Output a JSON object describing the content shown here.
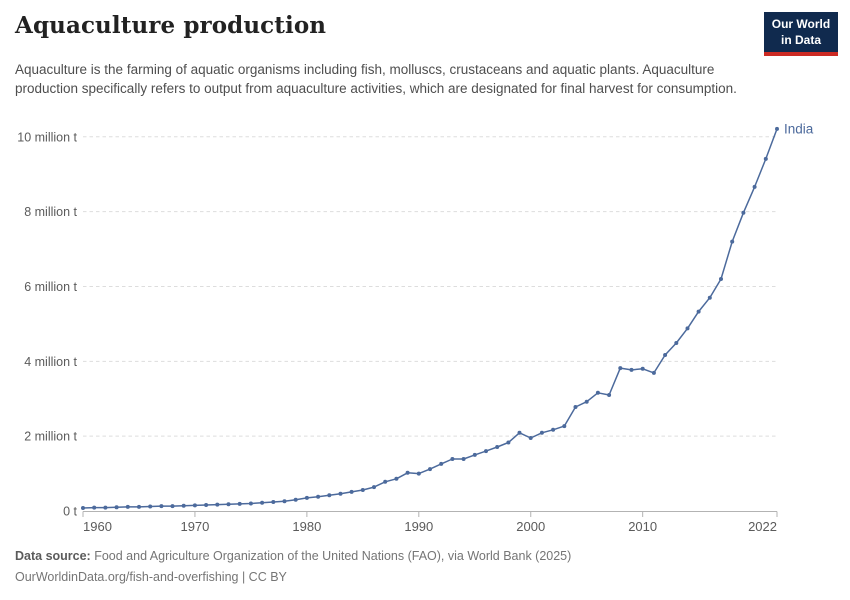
{
  "header": {
    "title": "Aquaculture production",
    "logo_line1": "Our World",
    "logo_line2": "in Data"
  },
  "subtitle": "Aquaculture is the farming of aquatic organisms including fish, molluscs, crustaceans and aquatic plants. Aquaculture production specifically refers to output from aquaculture activities, which are designated for final harvest for consumption.",
  "chart_data": {
    "type": "line",
    "title": "Aquaculture production",
    "unit": "million tonnes",
    "x": [
      1960,
      1961,
      1962,
      1963,
      1964,
      1965,
      1966,
      1967,
      1968,
      1969,
      1970,
      1971,
      1972,
      1973,
      1974,
      1975,
      1976,
      1977,
      1978,
      1979,
      1980,
      1981,
      1982,
      1983,
      1984,
      1985,
      1986,
      1987,
      1988,
      1989,
      1990,
      1991,
      1992,
      1993,
      1994,
      1995,
      1996,
      1997,
      1998,
      1999,
      2000,
      2001,
      2002,
      2003,
      2004,
      2005,
      2006,
      2007,
      2008,
      2009,
      2010,
      2011,
      2012,
      2013,
      2014,
      2015,
      2016,
      2017,
      2018,
      2019,
      2020,
      2021,
      2022
    ],
    "series": [
      {
        "name": "India",
        "color": "#4c6a9c",
        "values": [
          0.08,
          0.09,
          0.09,
          0.1,
          0.11,
          0.11,
          0.12,
          0.13,
          0.13,
          0.14,
          0.15,
          0.16,
          0.17,
          0.18,
          0.19,
          0.2,
          0.22,
          0.24,
          0.26,
          0.3,
          0.35,
          0.38,
          0.42,
          0.46,
          0.51,
          0.56,
          0.64,
          0.78,
          0.86,
          1.02,
          1.0,
          1.12,
          1.26,
          1.39,
          1.39,
          1.5,
          1.6,
          1.71,
          1.83,
          2.09,
          1.95,
          2.09,
          2.17,
          2.27,
          2.78,
          2.92,
          3.16,
          3.1,
          3.82,
          3.77,
          3.8,
          3.69,
          4.17,
          4.49,
          4.88,
          5.33,
          5.7,
          6.2,
          7.2,
          7.97,
          8.66,
          9.41,
          10.21
        ]
      }
    ],
    "x_ticks": [
      1960,
      1970,
      1980,
      1990,
      2000,
      2010,
      2022
    ],
    "y_ticks": [
      {
        "value": 0,
        "label": "0 t"
      },
      {
        "value": 2,
        "label": "2 million t"
      },
      {
        "value": 4,
        "label": "4 million t"
      },
      {
        "value": 6,
        "label": "6 million t"
      },
      {
        "value": 8,
        "label": "8 million t"
      },
      {
        "value": 10,
        "label": "10 million t"
      }
    ],
    "xlim": [
      1960,
      2022
    ],
    "ylim": [
      0,
      10.4
    ],
    "grid": "horizontal-dashed",
    "legend_position": "end-of-line-label",
    "colors": {
      "line": "#4c6a9c",
      "grid": "#dddddd",
      "axis": "#b3b3b3",
      "tick_text": "#5b5b5b"
    }
  },
  "footer": {
    "source_label": "Data source:",
    "source_text": " Food and Agriculture Organization of the United Nations (FAO), via World Bank (2025)",
    "license_line": "OurWorldinData.org/fish-and-overfishing | CC BY"
  }
}
